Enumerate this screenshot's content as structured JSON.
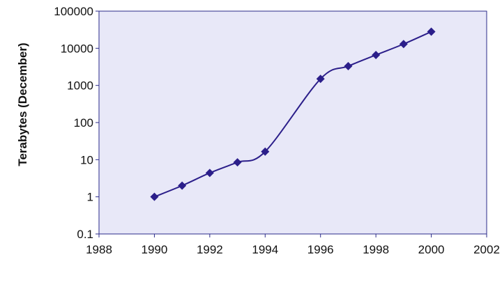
{
  "chart_data": {
    "type": "line",
    "title": "",
    "xlabel": "",
    "ylabel": "Terabytes (December)",
    "yscale": "log",
    "xlim": [
      1988,
      2002
    ],
    "ylim": [
      0.1,
      100000
    ],
    "x_ticks": [
      "1988",
      "1990",
      "1992",
      "1994",
      "1996",
      "1998",
      "2000",
      "2002"
    ],
    "y_ticks": [
      "0.1",
      "1",
      "10",
      "100",
      "1000",
      "10000",
      "100000"
    ],
    "grid": false,
    "legend": "none",
    "series": [
      {
        "x": [
          1990,
          1991,
          1992,
          1993,
          1994,
          1996,
          1997,
          1998,
          1999,
          2000
        ],
        "y": [
          1,
          2,
          4.4,
          8.5,
          16.5,
          1500,
          3300,
          6600,
          13000,
          28000
        ],
        "marker": "diamond",
        "smooth": true
      }
    ],
    "colors": {
      "plot_background": "#e8e8f8",
      "plot_border": "#2a2a8a",
      "series": "#2b1e8a"
    }
  }
}
